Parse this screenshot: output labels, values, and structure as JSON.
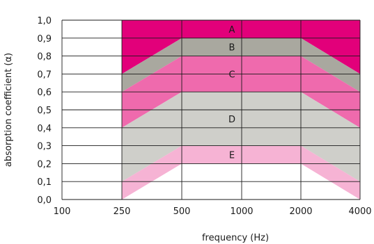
{
  "chart_data": {
    "type": "area",
    "title": "",
    "xlabel": "frequency (Hz)",
    "ylabel": "absorption coefficient (α)",
    "x_categories": [
      "100",
      "250",
      "500",
      "1000",
      "2000",
      "4000"
    ],
    "y_ticks": [
      "0,0",
      "0,1",
      "0,2",
      "0,3",
      "0,4",
      "0,5",
      "0,6",
      "0,7",
      "0,8",
      "0,9",
      "1,0"
    ],
    "ylim": [
      0,
      1.0
    ],
    "grid": true,
    "bands": [
      {
        "name": "A",
        "color": "#e2007a",
        "upper": [
          1.0,
          1.0,
          1.0,
          1.0,
          1.0
        ],
        "lower": [
          0.7,
          0.9,
          0.9,
          0.9,
          0.7
        ]
      },
      {
        "name": "B",
        "color": "#a9a89f",
        "upper": [
          0.7,
          0.9,
          0.9,
          0.9,
          0.7
        ],
        "lower": [
          0.6,
          0.8,
          0.8,
          0.8,
          0.6
        ]
      },
      {
        "name": "C",
        "color": "#ef6aad",
        "upper": [
          0.6,
          0.8,
          0.8,
          0.8,
          0.6
        ],
        "lower": [
          0.4,
          0.6,
          0.6,
          0.6,
          0.4
        ]
      },
      {
        "name": "D",
        "color": "#cfcfca",
        "upper": [
          0.4,
          0.6,
          0.6,
          0.6,
          0.4
        ],
        "lower": [
          0.1,
          0.3,
          0.3,
          0.3,
          0.1
        ]
      },
      {
        "name": "E",
        "color": "#f6b3d4",
        "upper": [
          0.1,
          0.3,
          0.3,
          0.3,
          0.1
        ],
        "lower": [
          0.0,
          0.2,
          0.2,
          0.2,
          0.0
        ]
      }
    ]
  }
}
